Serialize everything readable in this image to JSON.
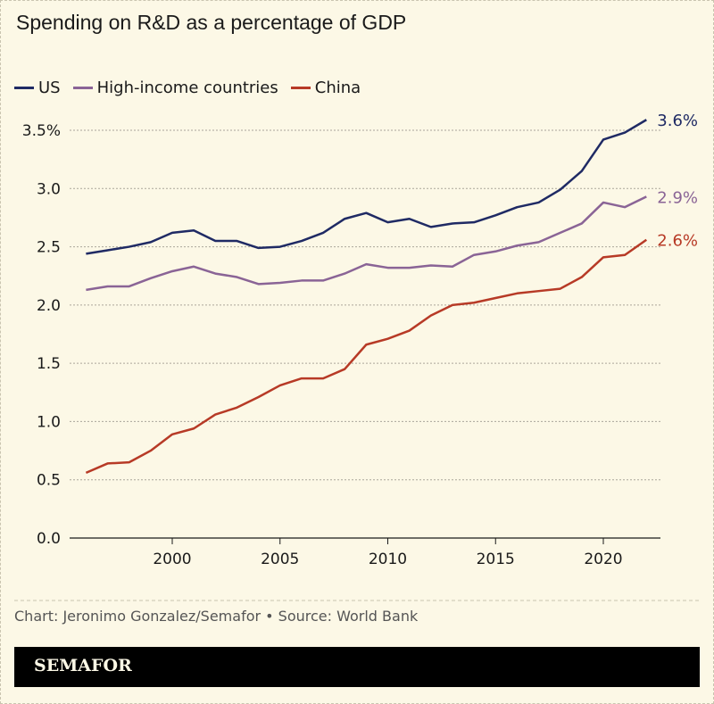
{
  "chart_data": {
    "type": "line",
    "title": "Spending on R&D as a percentage of GDP",
    "x": [
      1996,
      1997,
      1998,
      1999,
      2000,
      2001,
      2002,
      2003,
      2004,
      2005,
      2006,
      2007,
      2008,
      2009,
      2010,
      2011,
      2012,
      2013,
      2014,
      2015,
      2016,
      2017,
      2018,
      2019,
      2020,
      2021,
      2022
    ],
    "series": [
      {
        "name": "US",
        "color": "#1f2a64",
        "end_label": "3.6%",
        "values": [
          2.44,
          2.47,
          2.5,
          2.54,
          2.62,
          2.64,
          2.55,
          2.55,
          2.49,
          2.5,
          2.55,
          2.62,
          2.74,
          2.79,
          2.71,
          2.74,
          2.67,
          2.7,
          2.71,
          2.77,
          2.84,
          2.88,
          2.99,
          3.15,
          3.42,
          3.48,
          3.59
        ]
      },
      {
        "name": "High-income countries",
        "color": "#8a6496",
        "end_label": "2.9%",
        "values": [
          2.13,
          2.16,
          2.16,
          2.23,
          2.29,
          2.33,
          2.27,
          2.24,
          2.18,
          2.19,
          2.21,
          2.21,
          2.27,
          2.35,
          2.32,
          2.32,
          2.34,
          2.33,
          2.43,
          2.46,
          2.51,
          2.54,
          2.62,
          2.7,
          2.88,
          2.84,
          2.93
        ]
      },
      {
        "name": "China",
        "color": "#b73a26",
        "end_label": "2.6%",
        "values": [
          0.56,
          0.64,
          0.65,
          0.75,
          0.89,
          0.94,
          1.06,
          1.12,
          1.21,
          1.31,
          1.37,
          1.37,
          1.45,
          1.66,
          1.71,
          1.78,
          1.91,
          2.0,
          2.02,
          2.06,
          2.1,
          2.12,
          2.14,
          2.24,
          2.41,
          2.43,
          2.56
        ]
      }
    ],
    "ylim": [
      0,
      3.5
    ],
    "yticks": [
      0,
      0.5,
      1.0,
      1.5,
      2.0,
      2.5,
      3.0,
      3.5
    ],
    "ytick_labels": [
      "0.0",
      "0.5",
      "1.0",
      "1.5",
      "2.0",
      "2.5",
      "3.0",
      "3.5%"
    ],
    "xticks": [
      2000,
      2005,
      2010,
      2015,
      2020
    ],
    "xtick_labels": [
      "2000",
      "2005",
      "2010",
      "2015",
      "2020"
    ],
    "grid": true,
    "legend": "top-left"
  },
  "footer": {
    "credit": "Chart: Jeronimo Gonzalez/Semafor • Source: World Bank",
    "logo": "SEMAFOR"
  }
}
